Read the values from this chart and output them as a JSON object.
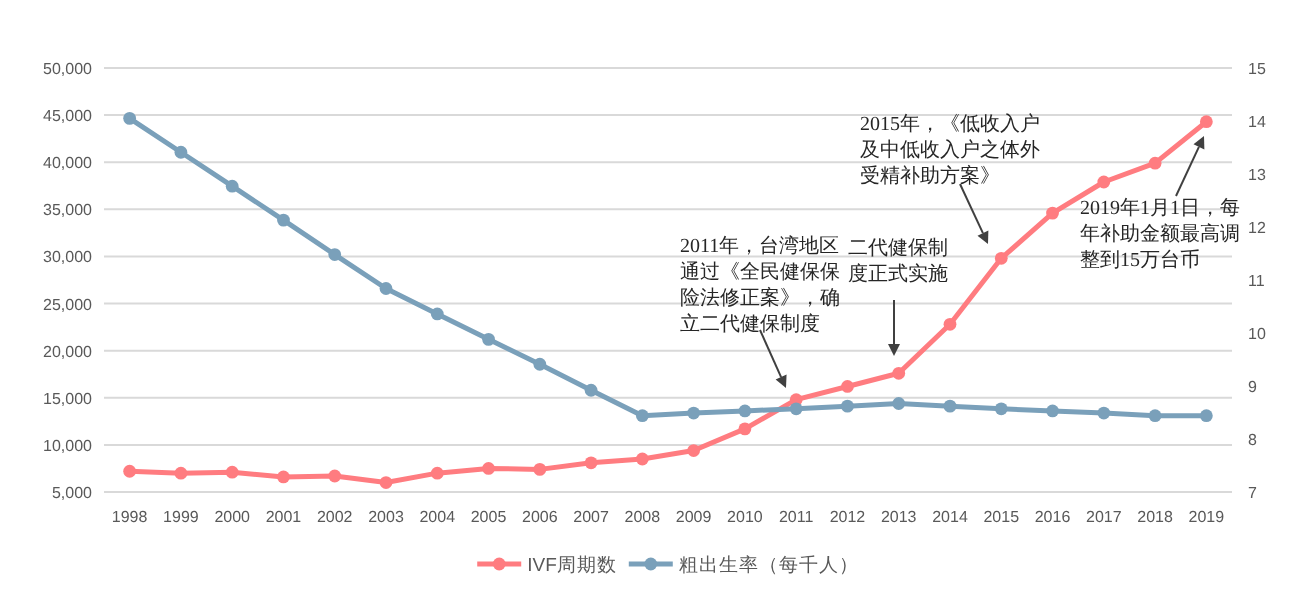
{
  "chart_data": {
    "type": "line",
    "categories": [
      "1998",
      "1999",
      "2000",
      "2001",
      "2002",
      "2003",
      "2004",
      "2005",
      "2006",
      "2007",
      "2008",
      "2009",
      "2010",
      "2011",
      "2012",
      "2013",
      "2014",
      "2015",
      "2016",
      "2017",
      "2018",
      "2019"
    ],
    "series": [
      {
        "name": "IVF周期数",
        "color": "#ff7c80",
        "values": [
          7200,
          7000,
          7100,
          6600,
          6700,
          6000,
          7000,
          7500,
          7400,
          8100,
          8500,
          9400,
          11700,
          14800,
          16200,
          17600,
          22800,
          29800,
          34600,
          37900,
          39900,
          44300
        ]
      },
      {
        "name": "粗出生率（每千人）",
        "color": "#7aa0ba",
        "axis": "y2",
        "values": [
          14.05,
          13.41,
          12.77,
          12.13,
          11.48,
          10.84,
          10.36,
          9.88,
          9.41,
          8.92,
          8.44,
          8.49,
          8.53,
          8.57,
          8.62,
          8.67,
          8.62,
          8.57,
          8.53,
          8.49,
          8.44,
          8.44
        ]
      }
    ],
    "ylim": [
      5000,
      50000
    ],
    "yticks": [
      {
        "value": 5000,
        "label": "5,000"
      },
      {
        "value": 10000,
        "label": "10,000"
      },
      {
        "value": 15000,
        "label": "15,000"
      },
      {
        "value": 20000,
        "label": "20,000"
      },
      {
        "value": 25000,
        "label": "25,000"
      },
      {
        "value": 30000,
        "label": "30,000"
      },
      {
        "value": 35000,
        "label": "35,000"
      },
      {
        "value": 40000,
        "label": "40,000"
      },
      {
        "value": 45000,
        "label": "45,000"
      },
      {
        "value": 50000,
        "label": "50,000"
      }
    ],
    "y2lim": [
      7,
      15
    ],
    "y2ticks": [
      7,
      8,
      9,
      10,
      11,
      12,
      13,
      14,
      15
    ],
    "grid": "y",
    "legend": "bottom",
    "marker": "circle",
    "line_style": "solid",
    "annotations": [
      "2011年，台湾地区通过《全民健保保险法修正案》，确立二代健保制度",
      "二代健保制度正式实施",
      "2015年，《低收入户及中低收入户之体外受精补助方案》",
      "2019年1月1日，每年补助金额最高调整到15万台币"
    ]
  }
}
